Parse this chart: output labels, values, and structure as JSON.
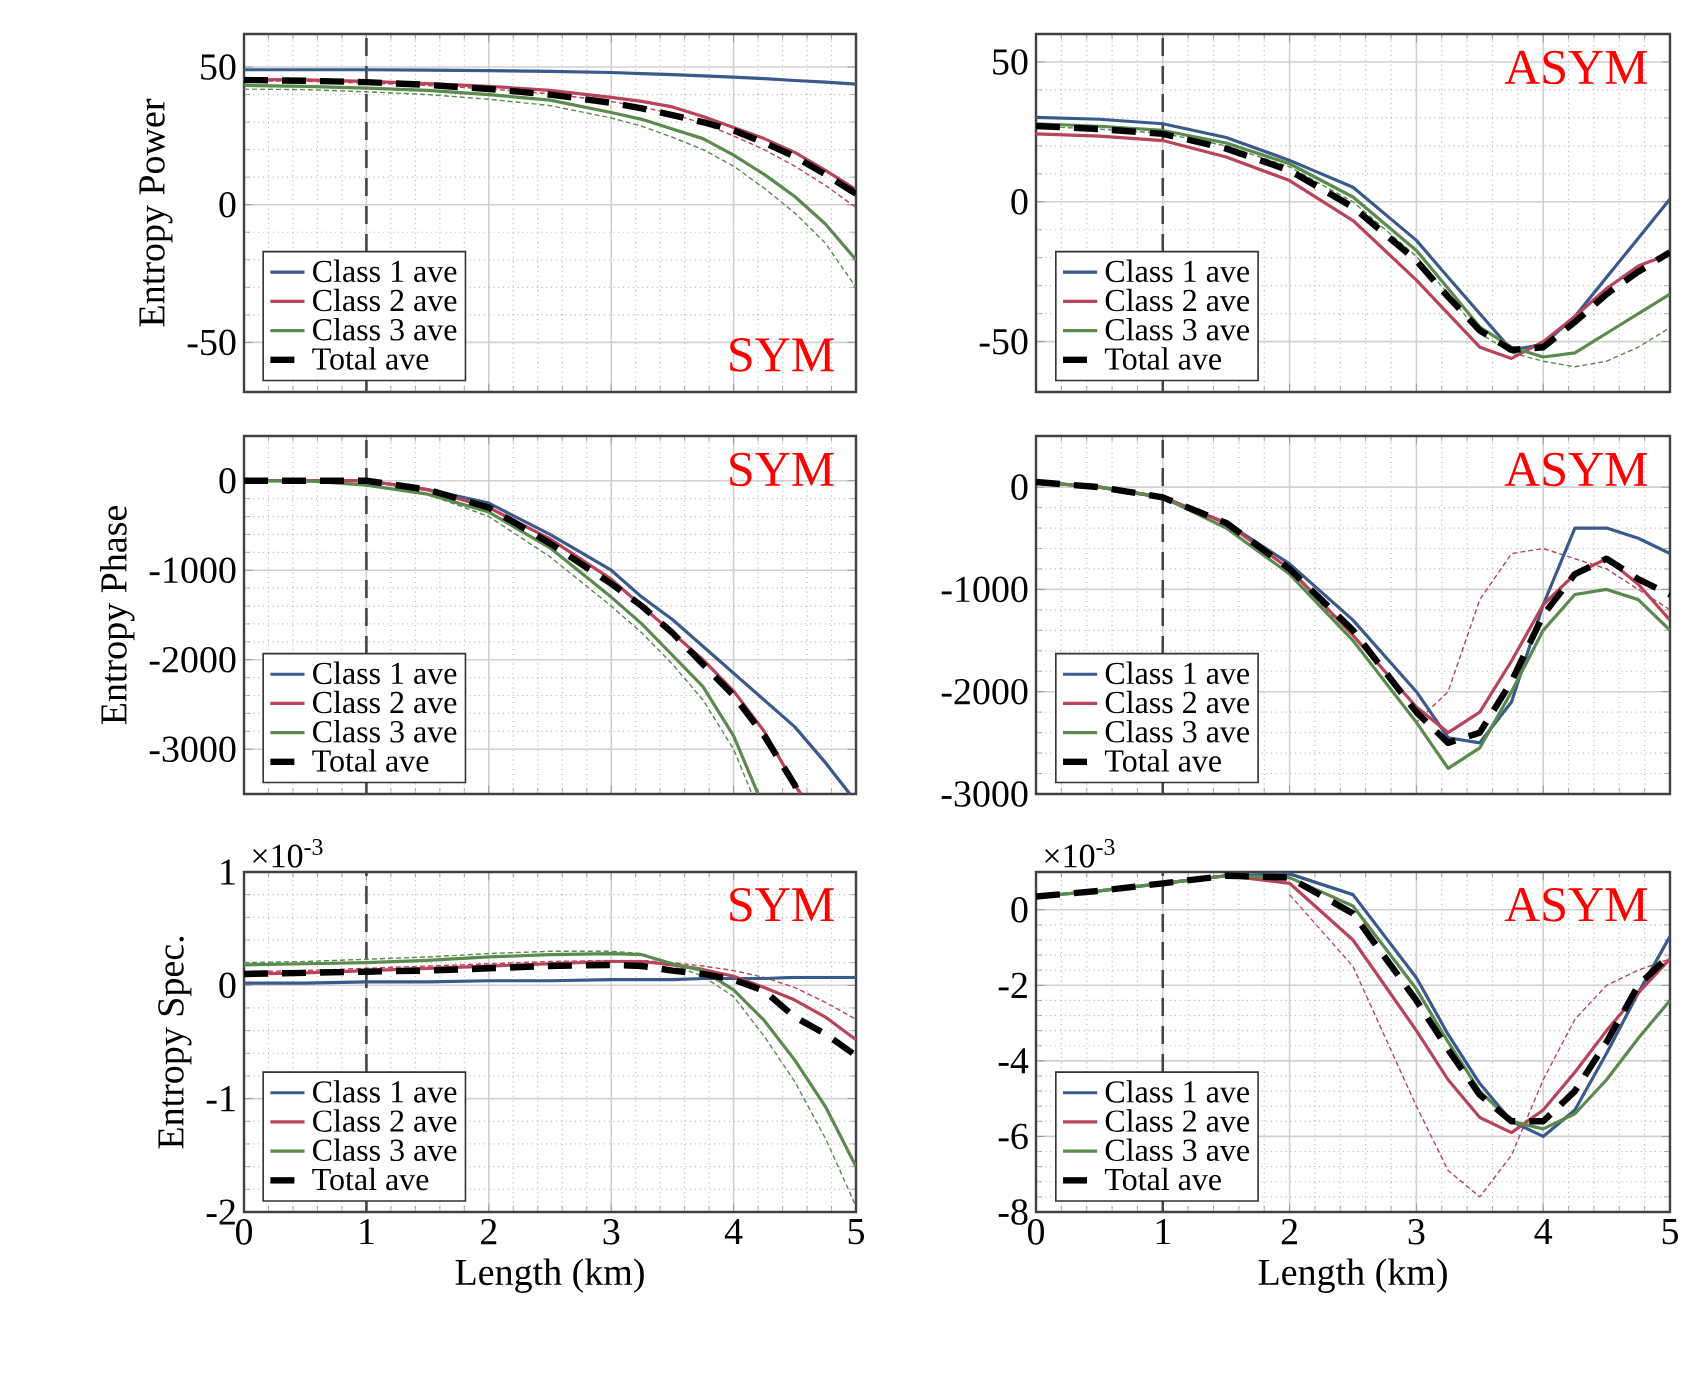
{
  "chart_data": [
    {
      "type": "line",
      "ylabel": "Entropy Power",
      "x": [
        0,
        0.5,
        1,
        1.5,
        2,
        2.5,
        3,
        3.25,
        3.5,
        3.75,
        4,
        4.25,
        4.5,
        4.75,
        5
      ],
      "xlim": [
        0,
        5
      ],
      "xticks": [
        0,
        1,
        2,
        3,
        4,
        5
      ],
      "ylim": [
        -68,
        62
      ],
      "yticks": [
        -50,
        0,
        50
      ],
      "grid": true,
      "legend": "bottom left",
      "tick_labels": "y",
      "annotations": [
        "SYM"
      ],
      "ref_lines": [
        {
          "axis": "x",
          "value": 1,
          "color": "#444444",
          "line_style": "dashed"
        }
      ],
      "series": [
        {
          "color": "#b9445a",
          "line_style": "dashed",
          "values": [
            45,
            44.8,
            44.2,
            43.3,
            42,
            40.3,
            37.5,
            35.5,
            33,
            29.5,
            25,
            20,
            14,
            7,
            -1
          ]
        },
        {
          "color": "#5a8a4e",
          "line_style": "dashed",
          "values": [
            42,
            41.8,
            41,
            40,
            38.3,
            36,
            31.5,
            28.5,
            24.5,
            20,
            14,
            6,
            -3,
            -14,
            -30
          ]
        },
        {
          "name": "Class 1 ave",
          "color": "#3a5a8c",
          "values": [
            49,
            49,
            49,
            48.9,
            48.7,
            48.4,
            48,
            47.6,
            47.2,
            46.8,
            46.3,
            45.8,
            45.1,
            44.5,
            43.8
          ]
        },
        {
          "name": "Class 2 ave",
          "color": "#b9445a",
          "values": [
            45.5,
            45.3,
            44.8,
            44,
            43,
            41.5,
            39,
            37.5,
            35.5,
            32,
            28,
            24,
            19,
            12.5,
            5.5
          ]
        },
        {
          "name": "Class 3 ave",
          "color": "#5a8a4e",
          "values": [
            43.3,
            43,
            42.3,
            41.5,
            40,
            38,
            33.5,
            31,
            27.5,
            24,
            18,
            11,
            3,
            -7,
            -20
          ]
        },
        {
          "name": "Total ave",
          "color": "#000000",
          "line_style": "dashed",
          "values": [
            45.3,
            45,
            44.5,
            43.5,
            42,
            40,
            37,
            35,
            32.5,
            30,
            27,
            22.5,
            17.5,
            11,
            4
          ]
        }
      ]
    },
    {
      "type": "line",
      "x": [
        0,
        0.5,
        1,
        1.5,
        2,
        2.5,
        3,
        3.25,
        3.5,
        3.75,
        4,
        4.25,
        4.5,
        4.75,
        5
      ],
      "xlim": [
        0,
        5
      ],
      "xticks": [
        0,
        1,
        2,
        3,
        4,
        5
      ],
      "ylim": [
        -68,
        60
      ],
      "yticks": [
        -50,
        0,
        50
      ],
      "grid": true,
      "legend": "bottom left",
      "tick_labels": "y",
      "annotations": [
        "ASYM"
      ],
      "ref_lines": [
        {
          "axis": "x",
          "value": 1,
          "color": "#444444",
          "line_style": "dashed"
        }
      ],
      "series": [
        {
          "color": "#5a8a4e",
          "line_style": "dashed",
          "values": [
            27,
            26,
            24.5,
            20,
            12.5,
            0,
            -19.5,
            -33,
            -47,
            -54,
            -57,
            -59,
            -57,
            -52,
            -45
          ]
        },
        {
          "name": "Class 1 ave",
          "color": "#3a5a8c",
          "values": [
            30.2,
            29.5,
            27.9,
            23,
            14.8,
            5.2,
            -13.8,
            -27,
            -40,
            -53,
            -51,
            -41,
            -27,
            -13,
            1
          ]
        },
        {
          "name": "Class 2 ave",
          "color": "#b9445a",
          "values": [
            24.3,
            23.5,
            21.9,
            16,
            7.6,
            -6.7,
            -28,
            -40,
            -52,
            -56,
            -50,
            -41,
            -31,
            -23,
            -18.6
          ]
        },
        {
          "name": "Class 3 ave",
          "color": "#5a8a4e",
          "values": [
            27.9,
            27,
            25.5,
            21,
            13.6,
            1.7,
            -17.4,
            -31,
            -44.8,
            -52,
            -55.5,
            -54,
            -47,
            -40,
            -33
          ]
        },
        {
          "name": "Total ave",
          "color": "#000000",
          "line_style": "dashed",
          "values": [
            27.1,
            26,
            24.3,
            19,
            11.2,
            -1.9,
            -21,
            -34,
            -46,
            -53,
            -52,
            -43,
            -33,
            -25,
            -18
          ]
        }
      ]
    },
    {
      "type": "line",
      "ylabel": "Entropy Phase",
      "xlim": [
        0,
        5
      ],
      "xticks": [
        0,
        1,
        2,
        3,
        4,
        5
      ],
      "ylim": [
        -3500,
        500
      ],
      "yticks": [
        -3000,
        -2000,
        -1000,
        0
      ],
      "grid": true,
      "legend": "bottom left",
      "tick_labels": "y",
      "annotations": [
        "SYM"
      ],
      "ref_lines": [
        {
          "axis": "x",
          "value": 1,
          "color": "#444444",
          "line_style": "dashed"
        }
      ],
      "series": [
        {
          "color": "#5a8a4e",
          "line_style": "dashed",
          "x": [
            0,
            0.5,
            1,
            1.5,
            2,
            2.5,
            3,
            3.25,
            3.5,
            3.75,
            4,
            4.15
          ],
          "values": [
            0,
            0,
            -50,
            -150,
            -400,
            -850,
            -1400,
            -1700,
            -2050,
            -2450,
            -3000,
            -3500
          ]
        },
        {
          "name": "Class 1 ave",
          "color": "#3a5a8c",
          "x": [
            0,
            0.5,
            1,
            1.5,
            2,
            2.5,
            3,
            3.25,
            3.5,
            3.75,
            4,
            4.25,
            4.5,
            4.75,
            4.95
          ],
          "values": [
            0,
            0,
            0,
            -100,
            -250,
            -600,
            -1000,
            -1300,
            -1550,
            -1850,
            -2150,
            -2450,
            -2750,
            -3150,
            -3500
          ]
        },
        {
          "name": "Class 2 ave",
          "color": "#b9445a",
          "x": [
            0,
            0.5,
            1,
            1.5,
            2,
            2.5,
            3,
            3.25,
            3.5,
            3.75,
            4,
            4.25,
            4.5,
            4.55
          ],
          "values": [
            0,
            0,
            0,
            -100,
            -300,
            -650,
            -1100,
            -1400,
            -1700,
            -2000,
            -2350,
            -2800,
            -3400,
            -3500
          ]
        },
        {
          "name": "Class 3 ave",
          "color": "#5a8a4e",
          "x": [
            0,
            0.5,
            1,
            1.5,
            2,
            2.5,
            3,
            3.25,
            3.5,
            3.75,
            4,
            4.2
          ],
          "values": [
            0,
            0,
            -50,
            -150,
            -350,
            -750,
            -1300,
            -1600,
            -1950,
            -2300,
            -2850,
            -3500
          ]
        },
        {
          "name": "Total ave",
          "color": "#000000",
          "line_style": "dashed",
          "x": [
            0,
            0.5,
            1,
            1.5,
            2,
            2.5,
            3,
            3.25,
            3.5,
            3.75,
            4,
            4.25,
            4.5,
            4.53
          ],
          "values": [
            0,
            0,
            0,
            -100,
            -300,
            -700,
            -1150,
            -1400,
            -1700,
            -2050,
            -2400,
            -2850,
            -3400,
            -3500
          ]
        }
      ]
    },
    {
      "type": "line",
      "x": [
        0,
        0.5,
        1,
        1.5,
        2,
        2.5,
        3,
        3.25,
        3.5,
        3.75,
        4,
        4.25,
        4.5,
        4.75,
        5
      ],
      "xlim": [
        0,
        5
      ],
      "xticks": [
        0,
        1,
        2,
        3,
        4,
        5
      ],
      "ylim": [
        -3000,
        500
      ],
      "yticks": [
        -3000,
        -2000,
        -1000,
        0
      ],
      "grid": true,
      "legend": "bottom left",
      "tick_labels": "y",
      "annotations": [
        "ASYM"
      ],
      "ref_lines": [
        {
          "axis": "x",
          "value": 1,
          "color": "#444444",
          "line_style": "dashed"
        }
      ],
      "series": [
        {
          "color": "#b9445a",
          "line_style": "dashed",
          "values": [
            50,
            0,
            -100,
            -350,
            -800,
            -1500,
            -2300,
            -2000,
            -1100,
            -650,
            -600,
            -700,
            -800,
            -1000,
            -1200
          ]
        },
        {
          "name": "Class 1 ave",
          "color": "#3a5a8c",
          "values": [
            50,
            0,
            -100,
            -350,
            -750,
            -1300,
            -2000,
            -2450,
            -2500,
            -2100,
            -1150,
            -400,
            -400,
            -500,
            -650
          ]
        },
        {
          "name": "Class 2 ave",
          "color": "#b9445a",
          "values": [
            50,
            0,
            -100,
            -350,
            -800,
            -1450,
            -2150,
            -2400,
            -2200,
            -1700,
            -1150,
            -850,
            -700,
            -950,
            -1300
          ]
        },
        {
          "name": "Class 3 ave",
          "color": "#5a8a4e",
          "values": [
            50,
            0,
            -100,
            -400,
            -850,
            -1500,
            -2300,
            -2750,
            -2550,
            -2000,
            -1400,
            -1050,
            -1000,
            -1100,
            -1400
          ]
        },
        {
          "name": "Total ave",
          "color": "#000000",
          "line_style": "dashed",
          "values": [
            50,
            0,
            -100,
            -350,
            -800,
            -1400,
            -2200,
            -2500,
            -2400,
            -1900,
            -1250,
            -850,
            -700,
            -900,
            -1050
          ]
        }
      ]
    },
    {
      "type": "line",
      "ylabel": "Entropy Spec.",
      "xlabel": "Length (km)",
      "x": [
        0,
        0.5,
        1,
        1.5,
        2,
        2.5,
        3,
        3.25,
        3.5,
        3.75,
        4,
        4.25,
        4.5,
        4.75,
        5
      ],
      "xlim": [
        0,
        5
      ],
      "xticks": [
        0,
        1,
        2,
        3,
        4,
        5
      ],
      "ylim": [
        -2,
        1
      ],
      "yticks": [
        -2,
        -1,
        0,
        1
      ],
      "grid": true,
      "legend": "bottom left",
      "annotations": [
        "SYM",
        "×10$^{-3}$"
      ],
      "ref_lines": [
        {
          "axis": "x",
          "value": 1,
          "color": "#444444",
          "line_style": "dashed"
        }
      ],
      "series": [
        {
          "color": "#b9445a",
          "line_style": "dashed",
          "values": [
            0.12,
            0.13,
            0.15,
            0.17,
            0.19,
            0.21,
            0.22,
            0.22,
            0.2,
            0.17,
            0.13,
            0.07,
            -0.02,
            -0.15,
            -0.3
          ]
        },
        {
          "color": "#5a8a4e",
          "line_style": "dashed",
          "values": [
            0.2,
            0.21,
            0.23,
            0.25,
            0.28,
            0.3,
            0.3,
            0.28,
            0.18,
            0.08,
            -0.1,
            -0.45,
            -0.85,
            -1.35,
            -1.95
          ]
        },
        {
          "name": "Class 1 ave",
          "color": "#3a5a8c",
          "values": [
            0.02,
            0.02,
            0.03,
            0.03,
            0.04,
            0.04,
            0.05,
            0.05,
            0.05,
            0.06,
            0.06,
            0.06,
            0.07,
            0.07,
            0.07
          ]
        },
        {
          "name": "Class 2 ave",
          "color": "#b9445a",
          "values": [
            0.1,
            0.11,
            0.13,
            0.15,
            0.17,
            0.19,
            0.21,
            0.21,
            0.18,
            0.14,
            0.08,
            -0.02,
            -0.13,
            -0.28,
            -0.48
          ]
        },
        {
          "name": "Class 3 ave",
          "color": "#5a8a4e",
          "values": [
            0.18,
            0.19,
            0.2,
            0.22,
            0.25,
            0.27,
            0.28,
            0.27,
            0.19,
            0.13,
            -0.04,
            -0.31,
            -0.66,
            -1.07,
            -1.6
          ]
        },
        {
          "name": "Total ave",
          "color": "#000000",
          "line_style": "dashed",
          "values": [
            0.1,
            0.11,
            0.12,
            0.13,
            0.15,
            0.17,
            0.18,
            0.17,
            0.13,
            0.1,
            0.05,
            -0.05,
            -0.28,
            -0.43,
            -0.62
          ]
        }
      ]
    },
    {
      "type": "line",
      "xlabel": "Length (km)",
      "x": [
        0,
        0.5,
        1,
        1.5,
        2,
        2.5,
        3,
        3.25,
        3.5,
        3.75,
        4,
        4.25,
        4.5,
        4.75,
        5
      ],
      "xlim": [
        0,
        5
      ],
      "xticks": [
        0,
        1,
        2,
        3,
        4,
        5
      ],
      "ylim": [
        -8,
        1
      ],
      "yticks": [
        -8,
        -6,
        -4,
        -2,
        0
      ],
      "grid": true,
      "legend": "bottom left",
      "annotations": [
        "ASYM",
        "×10$^{-3}$"
      ],
      "ref_lines": [
        {
          "axis": "x",
          "value": 1,
          "color": "#444444",
          "line_style": "dashed"
        }
      ],
      "series": [
        {
          "color": "#b9445a",
          "line_style": "dashed",
          "values": [
            null,
            null,
            null,
            null,
            0.4,
            -1.5,
            -5.2,
            -6.9,
            -7.6,
            -6.5,
            -4.5,
            -2.9,
            -2,
            -1.6,
            -1.3
          ]
        },
        {
          "name": "Class 1 ave",
          "color": "#3a5a8c",
          "values": [
            0.35,
            0.5,
            0.7,
            0.9,
            0.95,
            0.4,
            -1.8,
            -3.3,
            -4.6,
            -5.6,
            -6,
            -5.3,
            -3.8,
            -2.2,
            -0.7
          ]
        },
        {
          "name": "Class 2 ave",
          "color": "#b9445a",
          "values": [
            null,
            null,
            0.7,
            0.9,
            0.7,
            -0.8,
            -3.2,
            -4.5,
            -5.5,
            -5.9,
            -5.3,
            -4.3,
            -3.2,
            -2.2,
            -1.3
          ]
        },
        {
          "name": "Class 3 ave",
          "color": "#5a8a4e",
          "values": [
            0.35,
            0.5,
            0.7,
            0.9,
            0.85,
            0.1,
            -2.1,
            -3.5,
            -4.8,
            -5.6,
            -5.8,
            -5.4,
            -4.5,
            -3.4,
            -2.4
          ]
        },
        {
          "name": "Total ave",
          "color": "#000000",
          "line_style": "dashed",
          "values": [
            0.35,
            0.5,
            0.7,
            0.9,
            0.85,
            -0.1,
            -2.4,
            -3.7,
            -4.9,
            -5.6,
            -5.6,
            -4.8,
            -3.5,
            -2,
            -1.2
          ]
        }
      ]
    }
  ]
}
